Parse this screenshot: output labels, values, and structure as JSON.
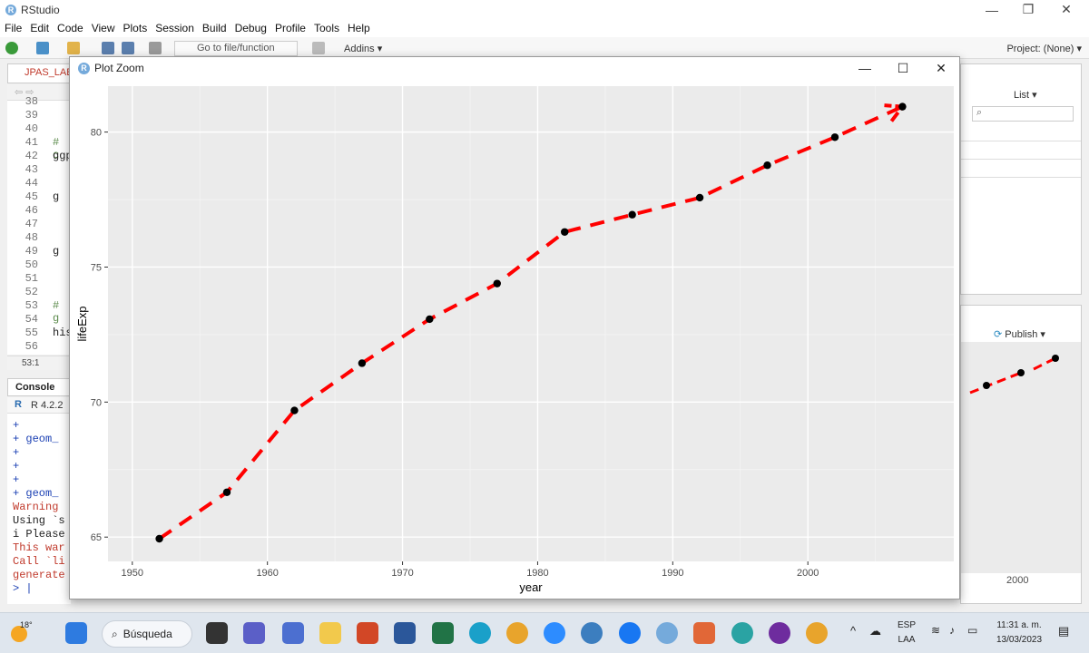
{
  "window": {
    "title": "RStudio",
    "controls": [
      "—",
      "❐",
      "✕"
    ]
  },
  "menu": [
    "File",
    "Edit",
    "Code",
    "View",
    "Plots",
    "Session",
    "Build",
    "Debug",
    "Profile",
    "Tools",
    "Help"
  ],
  "toolbar": {
    "goto_placeholder": "Go to file/function",
    "addins_label": "Addins",
    "project_label": "Project: (None)"
  },
  "editor": {
    "tab_label": "JPAS_LAE",
    "line_numbers": [
      "38",
      "39",
      "40",
      "41",
      "42",
      "43",
      "44",
      "45",
      "46",
      "47",
      "48",
      "49",
      "50",
      "51",
      "52",
      "53",
      "54",
      "55",
      "56"
    ],
    "code_fragments": [
      {
        "line": "41",
        "text": "# c",
        "kind": "comment"
      },
      {
        "line": "42",
        "text": "ggp",
        "kind": "code"
      },
      {
        "line": "45",
        "text": "g",
        "kind": "code"
      },
      {
        "line": "49",
        "text": "g",
        "kind": "code"
      },
      {
        "line": "53",
        "text": "# g",
        "kind": "comment"
      },
      {
        "line": "55",
        "text": "his",
        "kind": "code"
      }
    ],
    "cursor_position": "53:1"
  },
  "console": {
    "tab_label": "Console",
    "r_version": "R 4.2.2",
    "lines": [
      {
        "text": "+",
        "color": "#1a3fb3"
      },
      {
        "text": "+   geom_",
        "color": "#1a3fb3"
      },
      {
        "text": "+",
        "color": "#1a3fb3"
      },
      {
        "text": "+",
        "color": "#1a3fb3"
      },
      {
        "text": "+",
        "color": "#1a3fb3"
      },
      {
        "text": "+   geom_",
        "color": "#1a3fb3"
      },
      {
        "text": "Warning ",
        "color": "#c0392b"
      },
      {
        "text": "Using `s",
        "color": "#222222"
      },
      {
        "text": "i Please",
        "color": "#222222"
      },
      {
        "text": "This war",
        "color": "#c0392b"
      },
      {
        "text": "Call `li",
        "color": "#c0392b"
      },
      {
        "text": "generate",
        "color": "#c0392b"
      },
      {
        "text": "> |",
        "color": "#1a3fb3"
      }
    ]
  },
  "right_panes": {
    "list_label": "List",
    "publish_label": "Publish",
    "background_axis_label": "2000"
  },
  "plot_zoom": {
    "title": "Plot Zoom",
    "controls": [
      "—",
      "☐",
      "✕"
    ]
  },
  "chart_data": {
    "type": "line",
    "x": [
      1952,
      1957,
      1962,
      1967,
      1972,
      1977,
      1982,
      1987,
      1992,
      1997,
      2002,
      2007
    ],
    "y": [
      64.94,
      66.66,
      69.69,
      71.44,
      73.07,
      74.39,
      76.3,
      76.94,
      77.57,
      78.77,
      79.81,
      80.94
    ],
    "xlabel": "year",
    "ylabel": "lifeExp",
    "xlim": [
      1948.2,
      2010.8
    ],
    "ylim": [
      64.1,
      81.7
    ],
    "x_ticks": [
      "1950",
      "1960",
      "1970",
      "1980",
      "1990",
      "2000"
    ],
    "y_ticks": [
      "65",
      "70",
      "75",
      "80"
    ],
    "line_style": "dashed",
    "line_color": "#ff0000",
    "point_color": "#000000",
    "panel_background": "#ebebeb",
    "grid": true,
    "arrow_at_end": true
  },
  "taskbar": {
    "weather": "18°",
    "search_label": "Búsqueda",
    "language": "ESP",
    "region": "LAA",
    "time": "11:31 a. m.",
    "date": "13/03/2023"
  }
}
